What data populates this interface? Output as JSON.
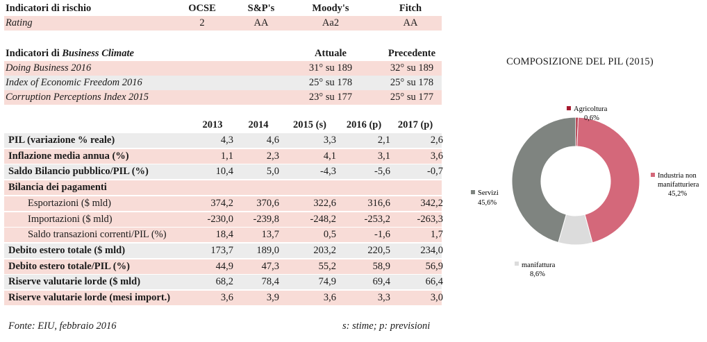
{
  "risk": {
    "header": [
      "Indicatori di rischio",
      "OCSE",
      "S&P's",
      "Moody's",
      "Fitch"
    ],
    "row": [
      "Rating",
      "2",
      "AA",
      "Aa2",
      "AA"
    ]
  },
  "business": {
    "title_prefix": "Indicatori di ",
    "title_italic": "Business Climate",
    "col_current": "Attuale",
    "col_previous": "Precedente",
    "rows": [
      {
        "label": "Doing Business 2016",
        "current": "31° su 189",
        "previous": "32° su 189"
      },
      {
        "label": "Index of Economic Freedom 2016",
        "current": "25° su 178",
        "previous": "25° su 178"
      },
      {
        "label": "Corruption Perceptions Index 2015",
        "current": "23° su 177",
        "previous": "25° su 177"
      }
    ]
  },
  "macro": {
    "years": [
      "2013",
      "2014",
      "2015 (s)",
      "2016 (p)",
      "2017 (p)"
    ],
    "rows": [
      {
        "label": "PIL (variazione % reale)",
        "values": [
          "4,3",
          "4,6",
          "3,3",
          "2,1",
          "2,6"
        ]
      },
      {
        "label": "Inflazione media annua (%)",
        "values": [
          "1,1",
          "2,3",
          "4,1",
          "3,1",
          "3,6"
        ]
      },
      {
        "label": "Saldo Bilancio pubblico/PIL (%)",
        "values": [
          "10,4",
          "5,0",
          "-4,3",
          "-5,6",
          "-0,7"
        ]
      },
      {
        "label": "Bilancia dei pagamenti",
        "values": [
          "",
          "",
          "",
          "",
          ""
        ]
      },
      {
        "label": "Esportazioni ($ mld)",
        "values": [
          "374,2",
          "370,6",
          "322,6",
          "316,6",
          "342,2"
        ]
      },
      {
        "label": "Importazioni ($ mld)",
        "values": [
          "-230,0",
          "-239,8",
          "-248,2",
          "-253,2",
          "-263,3"
        ]
      },
      {
        "label": "Saldo transazioni correnti/PIL (%)",
        "values": [
          "18,4",
          "13,7",
          "0,5",
          "-1,6",
          "1,7"
        ]
      },
      {
        "label": "Debito estero totale ($ mld)",
        "values": [
          "173,7",
          "189,0",
          "203,2",
          "220,5",
          "234,0"
        ]
      },
      {
        "label": "Debito estero totale/PIL (%)",
        "values": [
          "44,9",
          "47,3",
          "55,2",
          "58,9",
          "56,9"
        ]
      },
      {
        "label": "Riserve valutarie lorde ($ mld)",
        "values": [
          "68,2",
          "78,4",
          "74,9",
          "69,4",
          "66,4"
        ]
      },
      {
        "label": "Riserve valutarie lorde (mesi import.)",
        "values": [
          "3,6",
          "3,9",
          "3,6",
          "3,3",
          "3,0"
        ]
      }
    ]
  },
  "footer": {
    "source": "Fonte: EIU, febbraio 2016",
    "note": "s: stime; p: previsioni"
  },
  "chart_data": {
    "type": "pie",
    "title": "COMPOSIZIONE DEL PIL (2015)",
    "slices": [
      {
        "name": "Agricoltura",
        "value": 0.6,
        "label": "0,6%",
        "color": "#a6192e"
      },
      {
        "name": "Industria non manifatturiera",
        "value": 45.2,
        "label": "45,2%",
        "color": "#d4687a"
      },
      {
        "name": "manifattura",
        "value": 8.6,
        "label": "8,6%",
        "color": "#dcdcdc"
      },
      {
        "name": "Servizi",
        "value": 45.6,
        "label": "45,6%",
        "color": "#7f8480"
      }
    ],
    "donut": true,
    "start_angle_deg": 0,
    "direction": "clockwise"
  }
}
